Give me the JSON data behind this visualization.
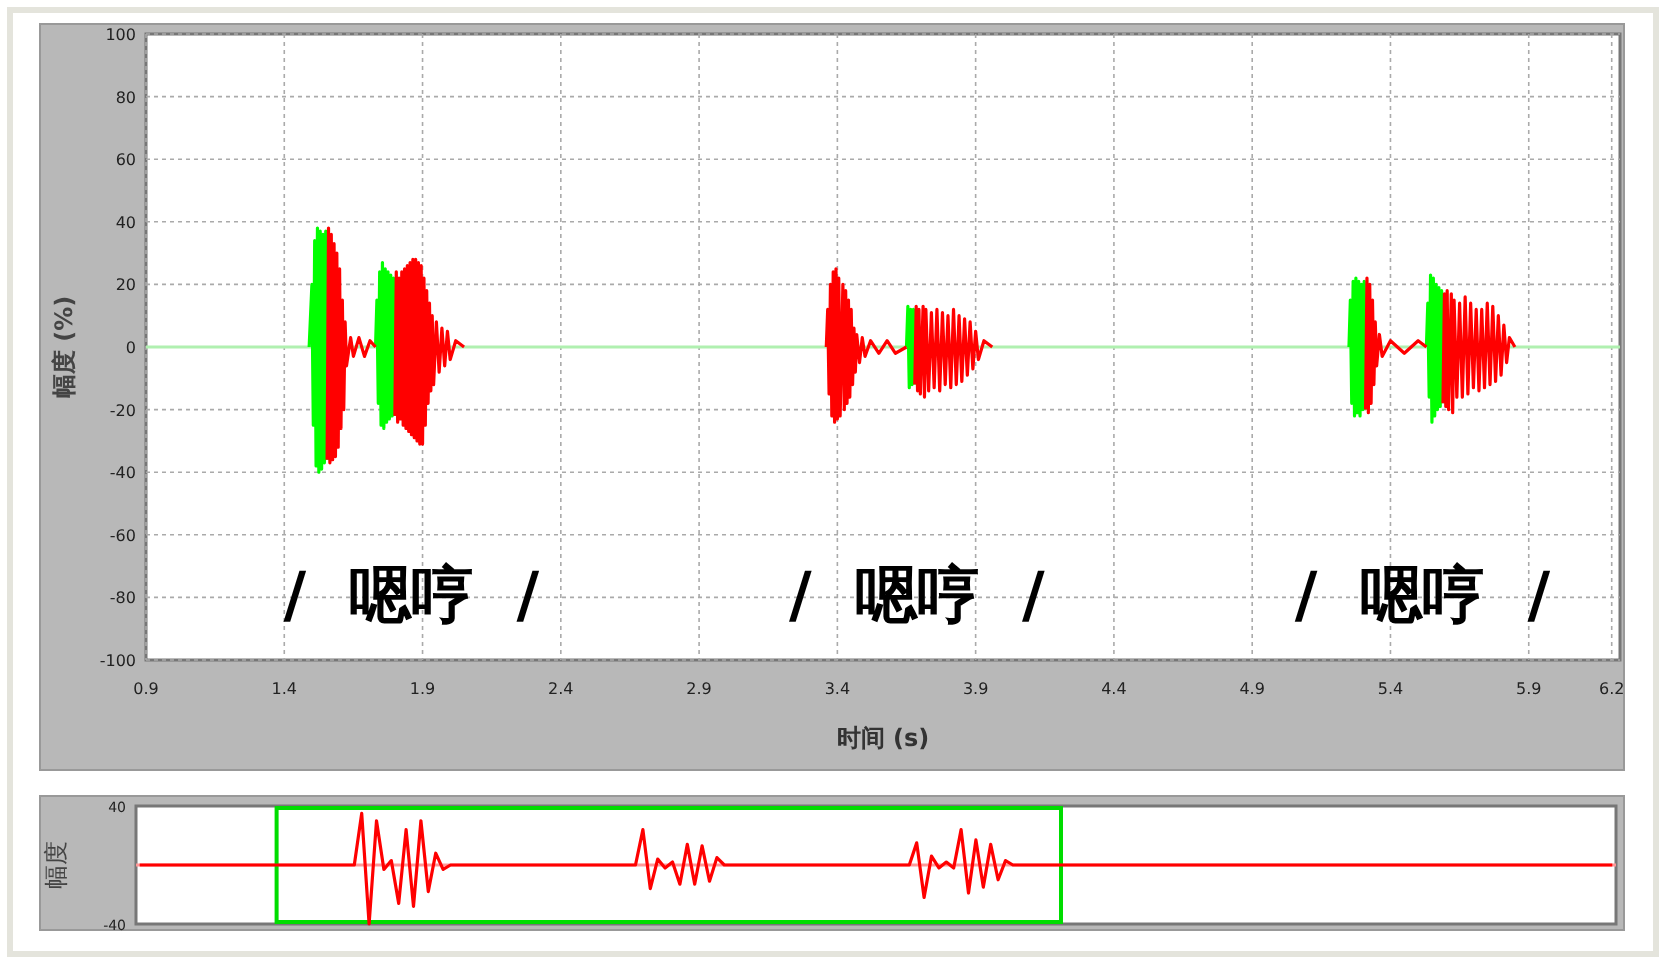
{
  "chart_data": [
    {
      "type": "line",
      "xlabel": "时间 (s)",
      "ylabel": "幅度 (%)",
      "xlim": [
        0.9,
        6.23
      ],
      "ylim": [
        -100,
        100
      ],
      "xticks": [
        0.9,
        1.4,
        1.9,
        2.4,
        2.9,
        3.4,
        3.9,
        4.4,
        4.9,
        5.4,
        5.9,
        6.2
      ],
      "yticks": [
        -100,
        -80,
        -60,
        -40,
        -20,
        0,
        20,
        40,
        60,
        80,
        100
      ],
      "grid": true,
      "ref_lines": [
        {
          "axis": "y",
          "value": 0,
          "color": "#b0f0b0"
        }
      ],
      "annotations": [
        "/  嗯哼  /",
        "/  嗯哼  /",
        "/  嗯哼  /"
      ],
      "series": [
        {
          "color": "#00ff00",
          "x": [
            1.49,
            1.5,
            1.505,
            1.51,
            1.515,
            1.52,
            1.525,
            1.53,
            1.535,
            1.54,
            1.545,
            1.55,
            1.555,
            null,
            1.73,
            1.735,
            1.74,
            1.745,
            1.75,
            1.755,
            1.76,
            1.765,
            1.77,
            1.775,
            1.78,
            1.785,
            1.79,
            1.795,
            1.8,
            null,
            3.65,
            3.655,
            3.66,
            3.665,
            3.67,
            3.675,
            3.68,
            null,
            5.25,
            5.255,
            5.26,
            5.265,
            5.27,
            5.275,
            5.28,
            5.285,
            5.29,
            5.295,
            5.3,
            5.305,
            5.31,
            null,
            5.53,
            5.535,
            5.54,
            5.545,
            5.55,
            5.555,
            5.56,
            5.565,
            5.57,
            5.575,
            5.58,
            5.585,
            5.59
          ],
          "values": [
            0,
            20,
            -25,
            34,
            -38,
            38,
            -40,
            37,
            -39,
            36,
            -37,
            37,
            -36,
            null,
            0,
            15,
            -18,
            24,
            -25,
            27,
            -26,
            25,
            -24,
            24,
            -23,
            23,
            -22,
            22,
            -22,
            null,
            0,
            13,
            -13,
            12,
            -12,
            12,
            -12,
            null,
            0,
            15,
            -18,
            21,
            -22,
            22,
            -21,
            21,
            -22,
            20,
            -20,
            21,
            -20,
            null,
            0,
            14,
            -16,
            23,
            -24,
            22,
            -22,
            20,
            -20,
            19,
            -19,
            18,
            -18
          ]
        },
        {
          "color": "#ff0000",
          "x": [
            1.555,
            1.56,
            1.565,
            1.57,
            1.575,
            1.58,
            1.585,
            1.59,
            1.595,
            1.6,
            1.605,
            1.61,
            1.615,
            1.62,
            1.625,
            1.64,
            1.65,
            1.67,
            1.69,
            1.71,
            1.73,
            null,
            1.8,
            1.805,
            1.81,
            1.815,
            1.82,
            1.825,
            1.83,
            1.835,
            1.84,
            1.845,
            1.85,
            1.855,
            1.86,
            1.865,
            1.87,
            1.875,
            1.88,
            1.885,
            1.89,
            1.895,
            1.9,
            1.905,
            1.91,
            1.915,
            1.92,
            1.925,
            1.93,
            1.935,
            1.94,
            1.95,
            1.96,
            1.97,
            1.98,
            1.99,
            2.0,
            2.02,
            2.05,
            null,
            3.36,
            3.365,
            3.37,
            3.375,
            3.38,
            3.385,
            3.39,
            3.395,
            3.4,
            3.405,
            3.41,
            3.42,
            3.425,
            3.43,
            3.435,
            3.44,
            3.445,
            3.45,
            3.455,
            3.46,
            3.465,
            3.47,
            3.48,
            3.49,
            3.5,
            3.52,
            3.55,
            3.58,
            3.61,
            3.65,
            null,
            3.68,
            3.685,
            3.69,
            3.695,
            3.7,
            3.71,
            3.715,
            3.72,
            3.73,
            3.74,
            3.75,
            3.76,
            3.77,
            3.78,
            3.79,
            3.8,
            3.81,
            3.82,
            3.83,
            3.84,
            3.85,
            3.86,
            3.87,
            3.88,
            3.89,
            3.9,
            3.91,
            3.93,
            3.96,
            null,
            5.31,
            5.315,
            5.32,
            5.325,
            5.33,
            5.335,
            5.34,
            5.345,
            5.35,
            5.36,
            5.37,
            5.4,
            5.45,
            5.5,
            5.53,
            null,
            5.59,
            5.595,
            5.6,
            5.605,
            5.61,
            5.62,
            5.625,
            5.63,
            5.64,
            5.65,
            5.66,
            5.67,
            5.68,
            5.69,
            5.7,
            5.71,
            5.72,
            5.73,
            5.74,
            5.75,
            5.76,
            5.77,
            5.78,
            5.79,
            5.8,
            5.81,
            5.82,
            5.83,
            5.85
          ],
          "values": [
            -36,
            38,
            -37,
            36,
            -36,
            33,
            -35,
            30,
            -32,
            25,
            -26,
            15,
            -20,
            8,
            -6,
            3,
            -3,
            3,
            -3,
            2,
            0,
            null,
            -22,
            24,
            -24,
            22,
            -23,
            24,
            -25,
            25,
            -26,
            26,
            -27,
            27,
            -28,
            28,
            -29,
            28,
            -30,
            27,
            -31,
            26,
            -31,
            22,
            -25,
            18,
            -18,
            14,
            -14,
            10,
            -12,
            8,
            -8,
            6,
            -6,
            5,
            -4,
            2,
            0,
            null,
            0,
            12,
            -15,
            20,
            -22,
            24,
            -24,
            25,
            -23,
            22,
            -22,
            20,
            -20,
            18,
            -18,
            15,
            -16,
            12,
            -12,
            6,
            -8,
            4,
            -5,
            3,
            -3,
            2,
            -2,
            2,
            -2,
            0,
            null,
            -12,
            13,
            -14,
            12,
            -15,
            13,
            -16,
            12,
            -14,
            11,
            -13,
            12,
            -14,
            11,
            -12,
            10,
            -13,
            12,
            -12,
            10,
            -11,
            9,
            -9,
            8,
            -7,
            5,
            -4,
            2,
            0,
            null,
            -20,
            22,
            -21,
            20,
            -18,
            15,
            -12,
            8,
            -6,
            4,
            -3,
            2,
            -2,
            2,
            0,
            null,
            -18,
            17,
            -19,
            18,
            -20,
            17,
            -21,
            15,
            -16,
            14,
            -16,
            16,
            -15,
            14,
            -13,
            12,
            -14,
            12,
            -13,
            14,
            -12,
            13,
            -11,
            10,
            -9,
            7,
            -5,
            3,
            0
          ]
        }
      ]
    },
    {
      "type": "line",
      "ylabel": "幅度",
      "ylim": [
        -40,
        40
      ],
      "yticks": [
        -40,
        40
      ],
      "tick_labels": "y",
      "categories": [
        null,
        null,
        null,
        null,
        null,
        null,
        null,
        null,
        null,
        null,
        null,
        null,
        null,
        null,
        null,
        null,
        null,
        null,
        null,
        null,
        null,
        null,
        null,
        null,
        null,
        null,
        null,
        null,
        null,
        null,
        null,
        null,
        null,
        null,
        null,
        null,
        null,
        null,
        null,
        null,
        null,
        null,
        null,
        null,
        null,
        null,
        null,
        null,
        null,
        null,
        null,
        null,
        null,
        null,
        null,
        null,
        null,
        null,
        null,
        null,
        null,
        null,
        null,
        null,
        null,
        null,
        null,
        null,
        null,
        null,
        null,
        null,
        null,
        null,
        null,
        null,
        null,
        null,
        null,
        null,
        null,
        null,
        null,
        null,
        null,
        null,
        null,
        null,
        null,
        null,
        null,
        null,
        null,
        null,
        null,
        null,
        null,
        null,
        null,
        null,
        null,
        null,
        null,
        null,
        null,
        null,
        null,
        null,
        null,
        null,
        null,
        null,
        null,
        null,
        null,
        null,
        null,
        null,
        null,
        null,
        null,
        null,
        null,
        null,
        null,
        null,
        null,
        null,
        null,
        null,
        null,
        null,
        null,
        null,
        null,
        null,
        null,
        null,
        null,
        null,
        null,
        null,
        null,
        null,
        null,
        null,
        null,
        null,
        null,
        null,
        null,
        null,
        null,
        null,
        null,
        null,
        null,
        null,
        null,
        null,
        null,
        null,
        null,
        null,
        null,
        null,
        null,
        null,
        null,
        null,
        null,
        null,
        null,
        null,
        null,
        null,
        null,
        null,
        null,
        null,
        null,
        null,
        null,
        null,
        null,
        null,
        null,
        null,
        null,
        null,
        null,
        null,
        null,
        null,
        null,
        null,
        null,
        null,
        null,
        null
      ],
      "ref_lines": [
        {
          "axis": "y",
          "value": 0,
          "color": "#ff9999"
        }
      ],
      "series": [
        {
          "color": "#ff0000",
          "values": [
            0,
            0,
            0,
            0,
            0,
            0,
            0,
            0,
            0,
            0,
            0,
            0,
            0,
            0,
            0,
            0,
            0,
            0,
            0,
            0,
            0,
            0,
            0,
            0,
            0,
            0,
            0,
            0,
            0,
            0,
            35,
            -40,
            30,
            -3,
            3,
            -26,
            24,
            -28,
            30,
            -18,
            8,
            -3,
            0,
            0,
            0,
            0,
            0,
            0,
            0,
            0,
            0,
            0,
            0,
            0,
            0,
            0,
            0,
            0,
            0,
            0,
            0,
            0,
            0,
            0,
            0,
            0,
            0,
            0,
            24,
            -16,
            4,
            -2,
            2,
            -13,
            14,
            -13,
            13,
            -11,
            5,
            0,
            0,
            0,
            0,
            0,
            0,
            0,
            0,
            0,
            0,
            0,
            0,
            0,
            0,
            0,
            0,
            0,
            0,
            0,
            0,
            0,
            0,
            0,
            0,
            0,
            0,
            15,
            -22,
            6,
            -2,
            2,
            -2,
            24,
            -19,
            17,
            -15,
            14,
            -10,
            3,
            0,
            0,
            0,
            0,
            0,
            0,
            0,
            0,
            0,
            0,
            0,
            0,
            0,
            0,
            0,
            0,
            0,
            0,
            0,
            0,
            0,
            0,
            0,
            0,
            0,
            0,
            0,
            0,
            0,
            0,
            0,
            0,
            0,
            0,
            0,
            0,
            0,
            0,
            0,
            0,
            0,
            0,
            0,
            0,
            0,
            0,
            0,
            0,
            0,
            0,
            0,
            0,
            0,
            0,
            0,
            0,
            0,
            0,
            0,
            0,
            0,
            0,
            0,
            0,
            0,
            0,
            0,
            0,
            0,
            0,
            0,
            0,
            0,
            0,
            0,
            0,
            0,
            0,
            0,
            0,
            0,
            0
          ]
        }
      ]
    }
  ]
}
